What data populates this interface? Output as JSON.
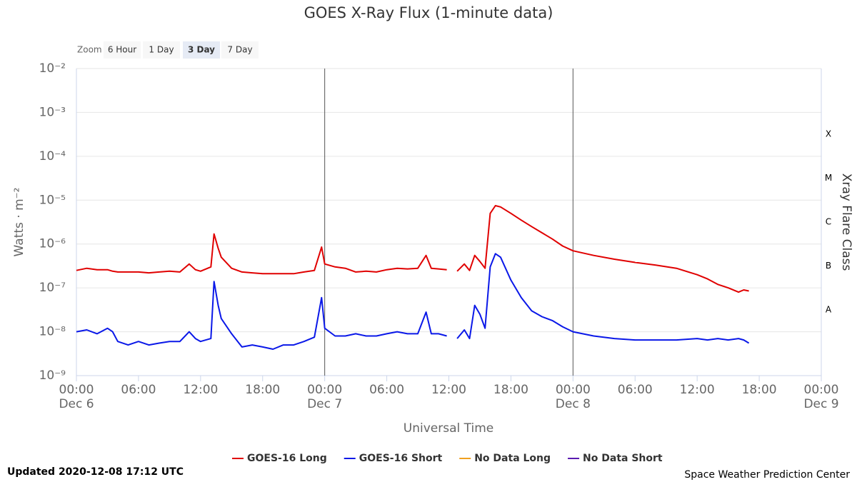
{
  "chart_data": {
    "type": "line",
    "title": "GOES X-Ray Flux (1-minute data)",
    "x_label": "Universal Time",
    "y_label": "Watts · m⁻²",
    "y2_label": "Xray Flare Class",
    "zoom": {
      "label": "Zoom",
      "options": [
        "6 Hour",
        "1 Day",
        "3 Day",
        "7 Day"
      ],
      "selected_index": 2
    },
    "log_y": true,
    "grid": true,
    "xlim": [
      0,
      72
    ],
    "ylim": [
      1e-09,
      0.01
    ],
    "xticks": [
      {
        "value": 0,
        "label": "00:00"
      },
      {
        "value": 6,
        "label": "06:00"
      },
      {
        "value": 12,
        "label": "12:00"
      },
      {
        "value": 18,
        "label": "18:00"
      },
      {
        "value": 24,
        "label": "00:00"
      },
      {
        "value": 30,
        "label": "06:00"
      },
      {
        "value": 36,
        "label": "12:00"
      },
      {
        "value": 42,
        "label": "18:00"
      },
      {
        "value": 48,
        "label": "00:00"
      },
      {
        "value": 54,
        "label": "06:00"
      },
      {
        "value": 60,
        "label": "12:00"
      },
      {
        "value": 66,
        "label": "18:00"
      },
      {
        "value": 72,
        "label": "00:00"
      }
    ],
    "xtick_dates": [
      {
        "value": 0,
        "label": "Dec 6"
      },
      {
        "value": 24,
        "label": "Dec 7"
      },
      {
        "value": 48,
        "label": "Dec 8"
      },
      {
        "value": 72,
        "label": "Dec 9"
      }
    ],
    "day_lines": [
      24,
      48
    ],
    "yticks": [
      {
        "value": 1e-09,
        "label": "10⁻⁹"
      },
      {
        "value": 1e-08,
        "label": "10⁻⁸"
      },
      {
        "value": 1e-07,
        "label": "10⁻⁷"
      },
      {
        "value": 1e-06,
        "label": "10⁻⁶"
      },
      {
        "value": 1e-05,
        "label": "10⁻⁵"
      },
      {
        "value": 0.0001,
        "label": "10⁻⁴"
      },
      {
        "value": 0.001,
        "label": "10⁻³"
      },
      {
        "value": 0.01,
        "label": "10⁻²"
      }
    ],
    "flare_classes": [
      {
        "label": "A",
        "from": 1e-08,
        "to": 1e-07
      },
      {
        "label": "B",
        "from": 1e-07,
        "to": 1e-06
      },
      {
        "label": "C",
        "from": 1e-06,
        "to": 1e-05
      },
      {
        "label": "M",
        "from": 1e-05,
        "to": 0.0001
      },
      {
        "label": "X",
        "from": 0.0001,
        "to": 0.001
      }
    ],
    "x": [
      0,
      1,
      2,
      3,
      3.5,
      4,
      5,
      6,
      7,
      8,
      9,
      10,
      10.9,
      11.5,
      12,
      13,
      13.3,
      13.7,
      14,
      15,
      16,
      17,
      18,
      19,
      20,
      21,
      22,
      23,
      23.7,
      24,
      25,
      26,
      27,
      28,
      29,
      30,
      31,
      32,
      33,
      33.8,
      34.3,
      35,
      35.8,
      36.3,
      36.8,
      37.5,
      38,
      38.5,
      39,
      39.5,
      40,
      40.5,
      41,
      42,
      43,
      44,
      45,
      46,
      47,
      48,
      50,
      52,
      54,
      56,
      58,
      60,
      61,
      62,
      63,
      64,
      64.5,
      65
    ],
    "series": [
      {
        "name": "GOES-16 Long",
        "color": "#e00000",
        "values": [
          2.5e-07,
          2.8e-07,
          2.6e-07,
          2.6e-07,
          2.4e-07,
          2.3e-07,
          2.3e-07,
          2.3e-07,
          2.2e-07,
          2.3e-07,
          2.4e-07,
          2.3e-07,
          3.5e-07,
          2.6e-07,
          2.4e-07,
          3e-07,
          1.7e-06,
          8e-07,
          5e-07,
          2.8e-07,
          2.3e-07,
          2.2e-07,
          2.1e-07,
          2.1e-07,
          2.1e-07,
          2.1e-07,
          2.3e-07,
          2.5e-07,
          8.5e-07,
          3.5e-07,
          3e-07,
          2.8e-07,
          2.3e-07,
          2.4e-07,
          2.3e-07,
          2.6e-07,
          2.8e-07,
          2.7e-07,
          2.8e-07,
          5.5e-07,
          2.8e-07,
          2.7e-07,
          2.6e-07,
          null,
          2.4e-07,
          3.5e-07,
          2.5e-07,
          5.5e-07,
          4e-07,
          2.8e-07,
          5e-06,
          7.5e-06,
          7e-06,
          5e-06,
          3.5e-06,
          2.5e-06,
          1.8e-06,
          1.3e-06,
          9e-07,
          7e-07,
          5.5e-07,
          4.5e-07,
          3.8e-07,
          3.3e-07,
          2.8e-07,
          2e-07,
          1.6e-07,
          1.2e-07,
          1e-07,
          8e-08,
          9e-08,
          8.5e-08
        ]
      },
      {
        "name": "GOES-16 Short",
        "color": "#0a18e8",
        "values": [
          1e-08,
          1.1e-08,
          9e-09,
          1.2e-08,
          1e-08,
          6e-09,
          5e-09,
          6e-09,
          5e-09,
          5.5e-09,
          6e-09,
          6e-09,
          1e-08,
          7e-09,
          6e-09,
          7e-09,
          1.4e-07,
          4e-08,
          2e-08,
          9e-09,
          4.5e-09,
          5e-09,
          4.5e-09,
          4e-09,
          5e-09,
          5e-09,
          6e-09,
          7.5e-09,
          6e-08,
          1.2e-08,
          8e-09,
          8e-09,
          9e-09,
          8e-09,
          8e-09,
          9e-09,
          1e-08,
          9e-09,
          9e-09,
          2.8e-08,
          9e-09,
          9e-09,
          8e-09,
          null,
          7e-09,
          1.1e-08,
          7e-09,
          4e-08,
          2.5e-08,
          1.2e-08,
          3e-07,
          6e-07,
          5e-07,
          1.5e-07,
          6e-08,
          3e-08,
          2.2e-08,
          1.8e-08,
          1.3e-08,
          1e-08,
          8e-09,
          7e-09,
          6.5e-09,
          6.5e-09,
          6.5e-09,
          7e-09,
          6.5e-09,
          7e-09,
          6.5e-09,
          7e-09,
          6.5e-09,
          5.5e-09
        ]
      },
      {
        "name": "No Data Long",
        "color": "#f0a020",
        "values": [
          null,
          null,
          null,
          null,
          null,
          null,
          null,
          null,
          null,
          null,
          null,
          null,
          null,
          null,
          null,
          null,
          null,
          null,
          null,
          null,
          null,
          null,
          null,
          null,
          null,
          null,
          null,
          null,
          null,
          null,
          null,
          null,
          null,
          null,
          null,
          null,
          null,
          null,
          null,
          null,
          null,
          null,
          null,
          null,
          null,
          null,
          null,
          null,
          null,
          null,
          null,
          null,
          null,
          null,
          null,
          null,
          null,
          null,
          null,
          null,
          null,
          null,
          null,
          null,
          null,
          null,
          null,
          null,
          null,
          null,
          null,
          null
        ]
      },
      {
        "name": "No Data Short",
        "color": "#5a1ab0",
        "values": [
          null,
          null,
          null,
          null,
          null,
          null,
          null,
          null,
          null,
          null,
          null,
          null,
          null,
          null,
          null,
          null,
          null,
          null,
          null,
          null,
          null,
          null,
          null,
          null,
          null,
          null,
          null,
          null,
          null,
          null,
          null,
          null,
          null,
          null,
          null,
          null,
          null,
          null,
          null,
          null,
          null,
          null,
          null,
          null,
          null,
          null,
          null,
          null,
          null,
          null,
          null,
          null,
          null,
          null,
          null,
          null,
          null,
          null,
          null,
          null,
          null,
          null,
          null,
          null,
          null,
          null,
          null,
          null,
          null,
          null,
          null,
          null
        ]
      }
    ]
  },
  "footer": {
    "updated": "Updated 2020-12-08 17:12 UTC",
    "credit": "Space Weather Prediction Center"
  }
}
